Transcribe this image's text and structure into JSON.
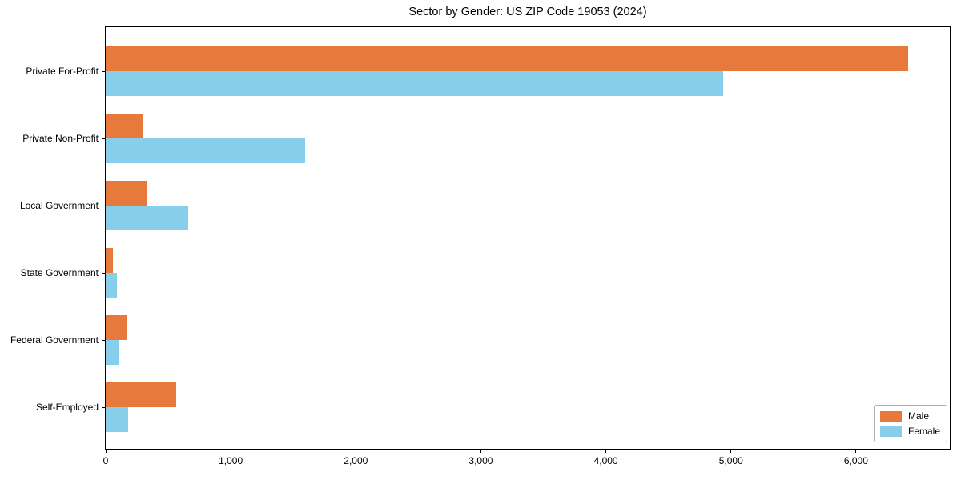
{
  "figure": {
    "title": "Sector by Gender: US ZIP Code 19053 (2024)"
  },
  "chart_data": {
    "type": "bar",
    "orientation": "horizontal",
    "title": "Sector by Gender: US ZIP Code 19053 (2024)",
    "categories": [
      "Private For-Profit",
      "Private Non-Profit",
      "Local Government",
      "State Government",
      "Federal Government",
      "Self-Employed"
    ],
    "series": [
      {
        "name": "Male",
        "color": "#e8793d",
        "values": [
          6420,
          300,
          325,
          60,
          165,
          565
        ]
      },
      {
        "name": "Female",
        "color": "#87ceeb",
        "values": [
          4940,
          1595,
          660,
          90,
          100,
          180
        ]
      }
    ],
    "xlabel": "",
    "ylabel": "",
    "xlim": [
      0,
      6750
    ],
    "x_ticks": [
      0,
      1000,
      2000,
      3000,
      4000,
      5000,
      6000
    ],
    "x_tick_labels": [
      "0",
      "1,000",
      "2,000",
      "3,000",
      "4,000",
      "5,000",
      "6,000"
    ],
    "legend": {
      "position": "lower-right",
      "entries": [
        "Male",
        "Female"
      ]
    },
    "grid": false,
    "axis_color": "#000000",
    "background": "#ffffff"
  }
}
